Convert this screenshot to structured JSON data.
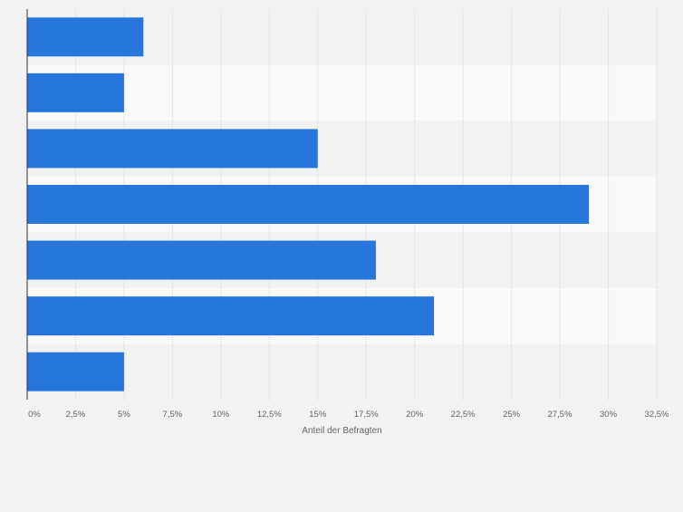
{
  "chart_data": {
    "type": "bar",
    "orientation": "horizontal",
    "categories": [
      "",
      "",
      "",
      "",
      "",
      "",
      ""
    ],
    "values": [
      6,
      5,
      15,
      29,
      18,
      21,
      5
    ],
    "xlabel": "Anteil der Befragten",
    "ylabel": "",
    "xlim": [
      0,
      32.5
    ],
    "ticks": [
      "0%",
      "2,5%",
      "5%",
      "7,5%",
      "10%",
      "12,5%",
      "15%",
      "17,5%",
      "20%",
      "22,5%",
      "25%",
      "27,5%",
      "30%",
      "32,5%"
    ],
    "grid": true,
    "legend": "none",
    "colors": {
      "bar": "#2776dc",
      "background": "#f2f2f2",
      "band_light": "#f9f9f9",
      "band_dark": "#f2f2f2",
      "grid": "#d6d6d6",
      "axis": "#333333",
      "text": "#666666"
    }
  }
}
